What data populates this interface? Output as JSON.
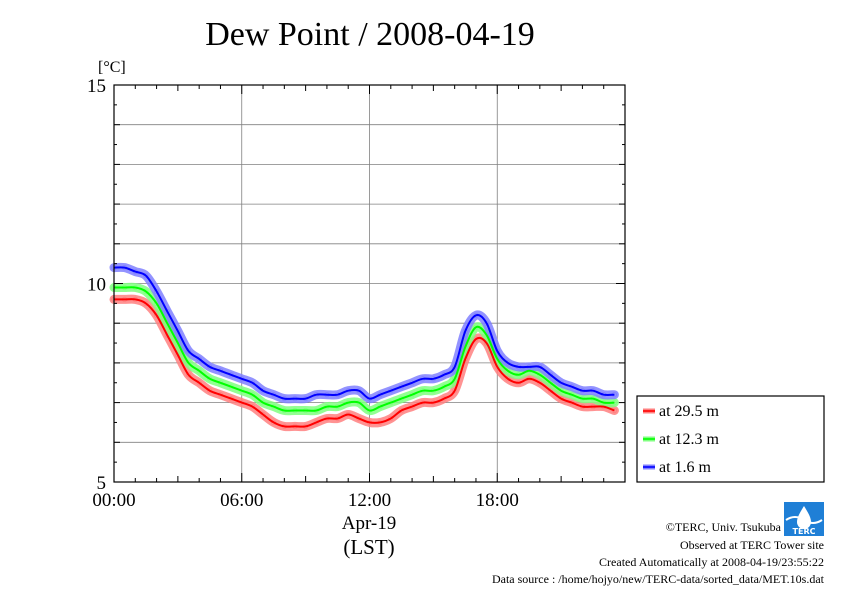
{
  "chart_data": {
    "type": "line",
    "title": "Dew Point / 2008-04-19",
    "ylabel": "[°C]",
    "xlabel": "Apr-19",
    "xlabel_sub": "(LST)",
    "ylim": [
      5,
      15
    ],
    "xlim_hours": [
      0,
      24
    ],
    "yticks": [
      "5",
      "10",
      "15"
    ],
    "xticks": [
      "00:00",
      "06:00",
      "12:00",
      "18:00"
    ],
    "grid": true,
    "legend_position": "right",
    "x_hours": [
      0,
      0.5,
      1,
      1.5,
      2,
      2.5,
      3,
      3.5,
      4,
      4.5,
      5,
      5.5,
      6,
      6.5,
      7,
      7.5,
      8,
      8.5,
      9,
      9.5,
      10,
      10.5,
      11,
      11.5,
      12,
      12.5,
      13,
      13.5,
      14,
      14.5,
      15,
      15.5,
      16,
      16.5,
      17,
      17.5,
      18,
      18.5,
      19,
      19.5,
      20,
      20.5,
      21,
      21.5,
      22,
      22.5,
      23,
      23.5
    ],
    "series": [
      {
        "name": "at 29.5 m",
        "color": "#ff0000",
        "band": "#ff8080",
        "values": [
          9.6,
          9.6,
          9.6,
          9.5,
          9.2,
          8.7,
          8.2,
          7.7,
          7.5,
          7.3,
          7.2,
          7.1,
          7.0,
          6.9,
          6.7,
          6.5,
          6.4,
          6.4,
          6.4,
          6.5,
          6.6,
          6.6,
          6.7,
          6.6,
          6.5,
          6.5,
          6.6,
          6.8,
          6.9,
          7.0,
          7.0,
          7.1,
          7.3,
          8.1,
          8.6,
          8.5,
          7.9,
          7.6,
          7.5,
          7.6,
          7.5,
          7.3,
          7.1,
          7.0,
          6.9,
          6.9,
          6.9,
          6.8
        ]
      },
      {
        "name": "at 12.3 m",
        "color": "#00ff00",
        "band": "#80ff80",
        "values": [
          9.9,
          9.9,
          9.9,
          9.8,
          9.5,
          9.0,
          8.5,
          8.0,
          7.8,
          7.6,
          7.5,
          7.4,
          7.3,
          7.2,
          7.0,
          6.9,
          6.8,
          6.8,
          6.8,
          6.8,
          6.9,
          6.9,
          7.0,
          7.0,
          6.8,
          6.9,
          7.0,
          7.1,
          7.2,
          7.3,
          7.3,
          7.4,
          7.6,
          8.4,
          8.9,
          8.7,
          8.1,
          7.8,
          7.7,
          7.8,
          7.7,
          7.5,
          7.3,
          7.2,
          7.1,
          7.1,
          7.0,
          7.0
        ]
      },
      {
        "name": "at 1.6 m",
        "color": "#0000ff",
        "band": "#8080ff",
        "values": [
          10.4,
          10.4,
          10.3,
          10.2,
          9.8,
          9.3,
          8.8,
          8.3,
          8.1,
          7.9,
          7.8,
          7.7,
          7.6,
          7.5,
          7.3,
          7.2,
          7.1,
          7.1,
          7.1,
          7.2,
          7.2,
          7.2,
          7.3,
          7.3,
          7.1,
          7.2,
          7.3,
          7.4,
          7.5,
          7.6,
          7.6,
          7.7,
          7.9,
          8.8,
          9.2,
          9.0,
          8.3,
          8.0,
          7.9,
          7.9,
          7.9,
          7.7,
          7.5,
          7.4,
          7.3,
          7.3,
          7.2,
          7.2
        ]
      }
    ]
  },
  "credits": {
    "copyright": "©TERC, Univ. Tsukuba",
    "observed": "Observed at TERC Tower site",
    "created": "Created Automatically at 2008-04-19/23:55:22",
    "source": "Data source : /home/hojyo/new/TERC-data/sorted_data/MET.10s.dat"
  },
  "logo": {
    "text": "TERC",
    "icon": "terc-logo-icon",
    "color": "#1f7fd6"
  }
}
